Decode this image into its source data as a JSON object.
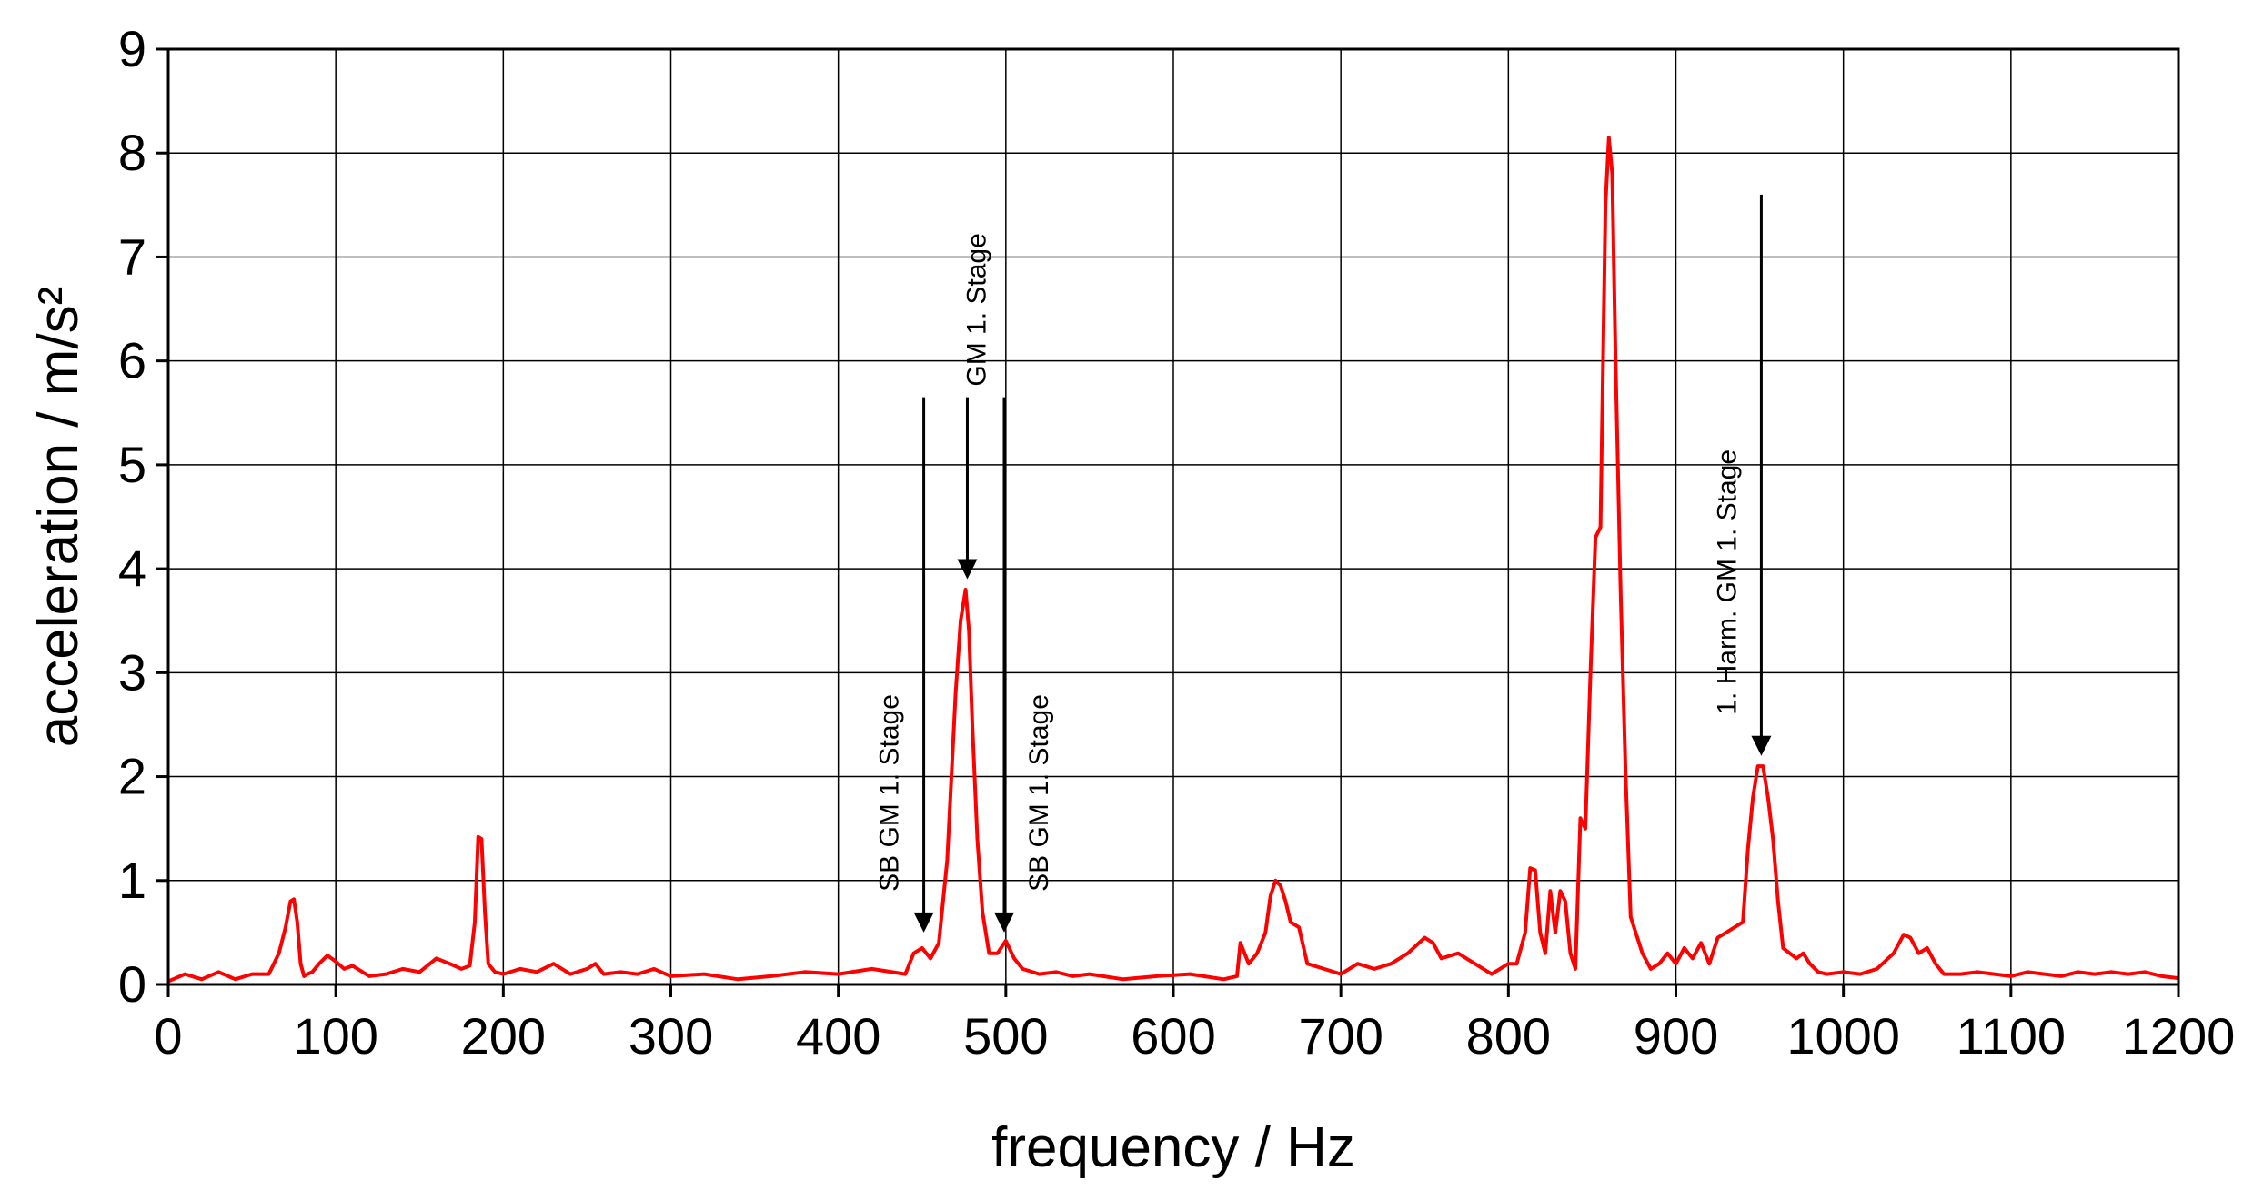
{
  "chart_data": {
    "type": "line",
    "xlabel": "frequency / Hz",
    "ylabel": "acceleration / m/s²",
    "xlim": [
      0,
      1200
    ],
    "ylim": [
      0,
      9
    ],
    "xticks": [
      0,
      100,
      200,
      300,
      400,
      500,
      600,
      700,
      800,
      900,
      1000,
      1100,
      1200
    ],
    "yticks": [
      0,
      1,
      2,
      3,
      4,
      5,
      6,
      7,
      8,
      9
    ],
    "grid": true,
    "colors": {
      "series": "#ff0000",
      "grid": "#000000",
      "axes": "#000000"
    },
    "series": [
      {
        "x": [
          0,
          10,
          20,
          30,
          40,
          50,
          60,
          66,
          70,
          73,
          75,
          77,
          79,
          81,
          83,
          86,
          90,
          95,
          100,
          105,
          110,
          120,
          130,
          140,
          150,
          160,
          168,
          175,
          180,
          183,
          185,
          187,
          189,
          191,
          195,
          200,
          210,
          220,
          230,
          240,
          250,
          255,
          260,
          270,
          280,
          290,
          300,
          320,
          340,
          360,
          380,
          400,
          420,
          440,
          445,
          450,
          455,
          460,
          465,
          470,
          473,
          476,
          478,
          480,
          483,
          486,
          490,
          495,
          500,
          505,
          510,
          520,
          530,
          540,
          550,
          570,
          590,
          610,
          630,
          638,
          640,
          645,
          650,
          655,
          658,
          661,
          664,
          667,
          670,
          675,
          680,
          690,
          700,
          710,
          720,
          730,
          740,
          750,
          755,
          760,
          770,
          780,
          790,
          800,
          805,
          810,
          813,
          816,
          819,
          822,
          825,
          828,
          831,
          834,
          837,
          840,
          843,
          846,
          849,
          852,
          855,
          858,
          860,
          862,
          864,
          867,
          870,
          873,
          876,
          880,
          885,
          890,
          895,
          900,
          905,
          910,
          915,
          920,
          925,
          930,
          935,
          940,
          943,
          946,
          949,
          952,
          955,
          958,
          961,
          964,
          968,
          972,
          976,
          980,
          985,
          990,
          1000,
          1010,
          1020,
          1030,
          1036,
          1040,
          1045,
          1050,
          1055,
          1060,
          1070,
          1080,
          1090,
          1100,
          1110,
          1120,
          1130,
          1140,
          1150,
          1160,
          1170,
          1180,
          1190,
          1200
        ],
        "values": [
          0.03,
          0.1,
          0.05,
          0.12,
          0.05,
          0.1,
          0.1,
          0.3,
          0.55,
          0.8,
          0.82,
          0.6,
          0.2,
          0.08,
          0.1,
          0.12,
          0.2,
          0.28,
          0.22,
          0.15,
          0.18,
          0.08,
          0.1,
          0.15,
          0.12,
          0.25,
          0.2,
          0.15,
          0.18,
          0.6,
          1.42,
          1.4,
          0.7,
          0.2,
          0.12,
          0.1,
          0.15,
          0.12,
          0.2,
          0.1,
          0.15,
          0.2,
          0.1,
          0.12,
          0.1,
          0.15,
          0.08,
          0.1,
          0.05,
          0.08,
          0.12,
          0.1,
          0.15,
          0.1,
          0.3,
          0.35,
          0.25,
          0.4,
          1.2,
          2.8,
          3.5,
          3.8,
          3.4,
          2.5,
          1.4,
          0.7,
          0.3,
          0.3,
          0.42,
          0.25,
          0.15,
          0.1,
          0.12,
          0.08,
          0.1,
          0.05,
          0.08,
          0.1,
          0.05,
          0.08,
          0.4,
          0.2,
          0.3,
          0.5,
          0.85,
          1.0,
          0.95,
          0.8,
          0.6,
          0.55,
          0.2,
          0.15,
          0.1,
          0.2,
          0.15,
          0.2,
          0.3,
          0.45,
          0.4,
          0.25,
          0.3,
          0.2,
          0.1,
          0.2,
          0.2,
          0.5,
          1.12,
          1.1,
          0.5,
          0.3,
          0.9,
          0.5,
          0.9,
          0.8,
          0.3,
          0.15,
          1.6,
          1.5,
          3.0,
          4.3,
          4.4,
          7.5,
          8.15,
          7.8,
          6.0,
          3.8,
          2.0,
          0.65,
          0.5,
          0.3,
          0.15,
          0.2,
          0.3,
          0.2,
          0.35,
          0.25,
          0.4,
          0.2,
          0.45,
          0.5,
          0.55,
          0.6,
          1.3,
          1.8,
          2.1,
          2.1,
          1.8,
          1.4,
          0.8,
          0.35,
          0.3,
          0.25,
          0.3,
          0.2,
          0.12,
          0.1,
          0.12,
          0.1,
          0.15,
          0.3,
          0.48,
          0.45,
          0.3,
          0.35,
          0.2,
          0.1,
          0.1,
          0.12,
          0.1,
          0.08,
          0.12,
          0.1,
          0.08,
          0.12,
          0.1,
          0.12,
          0.1,
          0.12,
          0.08,
          0.06
        ]
      }
    ],
    "annotations": [
      {
        "text": "SB GM 1. Stage",
        "x": 451,
        "y_from": 5.65,
        "y_to": 0.5,
        "label_side": "left"
      },
      {
        "text": "GM 1. Stage",
        "x": 477,
        "y_from": 5.65,
        "y_to": 3.9,
        "label_side": "center"
      },
      {
        "text": "SB GM 1. Stage",
        "x": 499,
        "y_from": 5.65,
        "y_to": 0.5,
        "label_side": "right"
      },
      {
        "text": "1. Harm. GM 1. Stage",
        "x": 951,
        "y_from": 7.6,
        "y_to": 2.2,
        "label_side": "left"
      }
    ]
  }
}
